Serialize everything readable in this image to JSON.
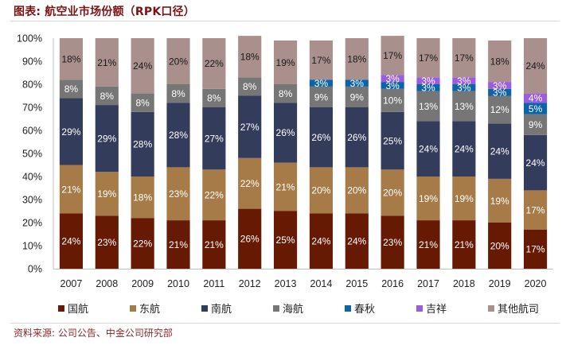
{
  "header": {
    "title": "图表: 航空业市场份额（RPK口径）"
  },
  "footer": {
    "source": "资料来源: 公司公告、中金公司研究部"
  },
  "chart_data": {
    "type": "bar",
    "stacked": true,
    "percent_stacked": true,
    "title": "航空业市场份额（RPK口径）",
    "xlabel": "",
    "ylabel": "",
    "ylim": [
      0,
      100
    ],
    "y_ticks": [
      "0%",
      "10%",
      "20%",
      "30%",
      "40%",
      "50%",
      "60%",
      "70%",
      "80%",
      "90%",
      "100%"
    ],
    "grid": false,
    "legend_position": "bottom",
    "categories": [
      "2007",
      "2008",
      "2009",
      "2010",
      "2011",
      "2012",
      "2013",
      "2014",
      "2015",
      "2016",
      "2017",
      "2018",
      "2019",
      "2020"
    ],
    "series": [
      {
        "name": "国航",
        "color": "#661a03",
        "label_color": "#ffffff",
        "values": [
          24,
          23,
          22,
          21,
          21,
          26,
          25,
          24,
          24,
          23,
          21,
          21,
          20,
          17
        ]
      },
      {
        "name": "东航",
        "color": "#a67b47",
        "label_color": "#ffffff",
        "values": [
          21,
          19,
          18,
          23,
          22,
          22,
          21,
          20,
          20,
          20,
          19,
          19,
          19,
          17
        ]
      },
      {
        "name": "南航",
        "color": "#343c5c",
        "label_color": "#ffffff",
        "values": [
          29,
          29,
          28,
          28,
          27,
          27,
          26,
          26,
          26,
          25,
          24,
          24,
          24,
          24
        ]
      },
      {
        "name": "海航",
        "color": "#767676",
        "label_color": "#ffffff",
        "values": [
          8,
          8,
          8,
          8,
          8,
          8,
          8,
          9,
          9,
          10,
          13,
          13,
          12,
          9
        ]
      },
      {
        "name": "春秋",
        "color": "#0b63a8",
        "label_color": "#ffffff",
        "values": [
          null,
          null,
          null,
          null,
          null,
          null,
          null,
          3,
          3,
          3,
          3,
          3,
          3,
          5
        ]
      },
      {
        "name": "吉祥",
        "color": "#9b5ce0",
        "label_color": "#ffffff",
        "values": [
          null,
          null,
          null,
          null,
          null,
          null,
          null,
          null,
          null,
          3,
          3,
          3,
          3,
          4
        ]
      },
      {
        "name": "其他航司",
        "color": "#a9908c",
        "label_color": "#1a1a1a",
        "values": [
          18,
          21,
          24,
          20,
          22,
          18,
          19,
          17,
          18,
          17,
          17,
          17,
          18,
          24
        ]
      }
    ],
    "data_label_format": "{v}%"
  }
}
